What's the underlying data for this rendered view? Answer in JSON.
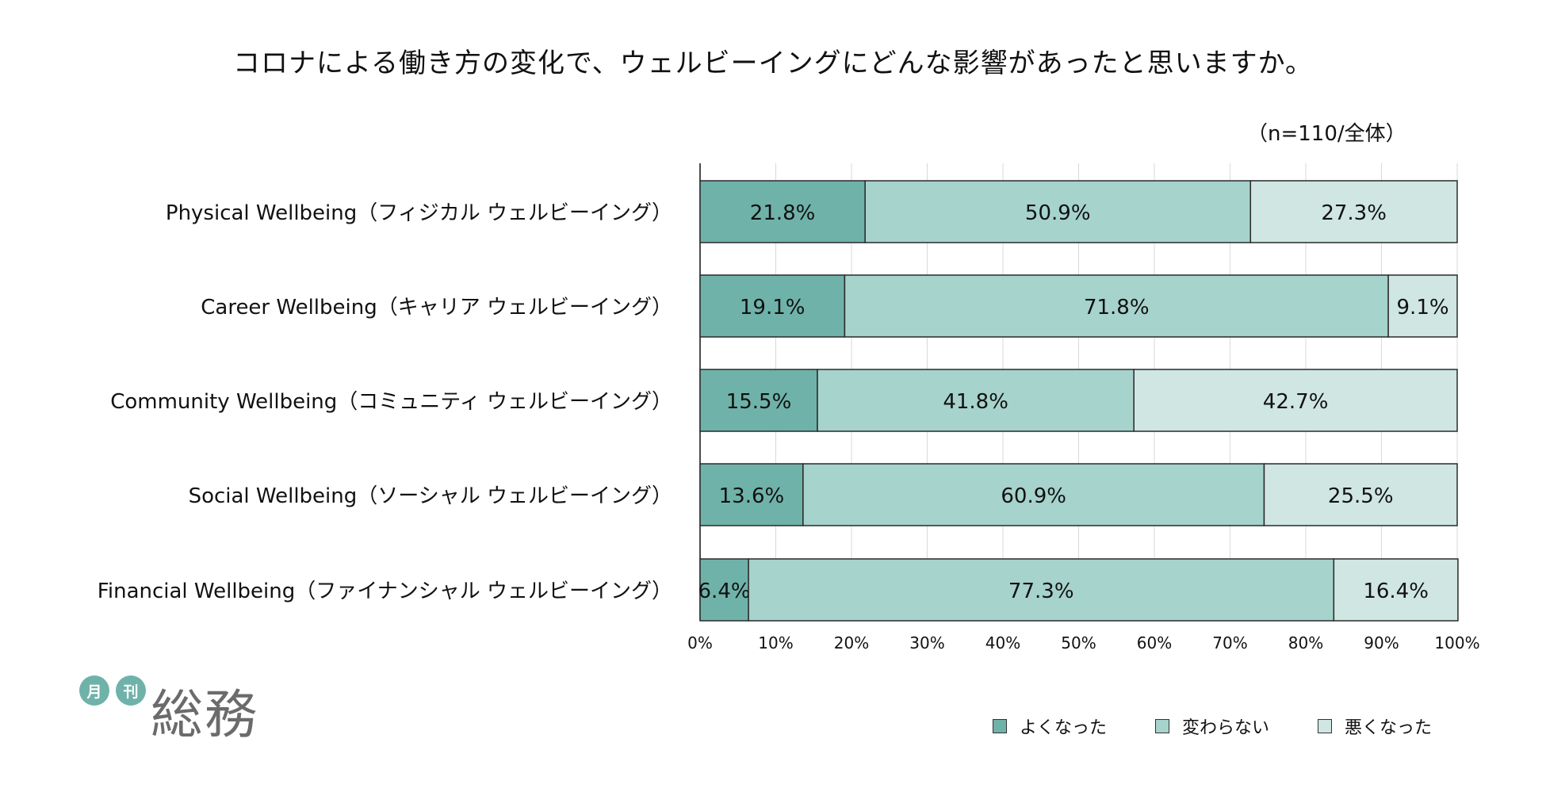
{
  "title": "コロナによる働き方の変化で、ウェルビーイングにどんな影響があったと思いますか。",
  "sample_note": "（n=110/全体）",
  "logo": {
    "badge1": "月",
    "badge2": "刊",
    "name": "総務"
  },
  "colors": {
    "better": "#6fb2a9",
    "same": "#a6d3cc",
    "worse": "#cfe6e2",
    "border": "#2a2a2a",
    "grid": "#d9d9d9"
  },
  "chart_data": {
    "type": "bar",
    "orientation": "horizontal",
    "stacked": "100%",
    "categories": [
      "Physical Wellbeing（フィジカル ウェルビーイング）",
      "Career Wellbeing（キャリア ウェルビーイング）",
      "Community Wellbeing（コミュニティ ウェルビーイング）",
      "Social Wellbeing（ソーシャル ウェルビーイング）",
      "Financial Wellbeing（ファイナンシャル ウェルビーイング）"
    ],
    "series": [
      {
        "name": "よくなった",
        "values": [
          21.8,
          19.1,
          15.5,
          13.6,
          6.4
        ]
      },
      {
        "name": "変わらない",
        "values": [
          50.9,
          71.8,
          41.8,
          60.9,
          77.3
        ]
      },
      {
        "name": "悪くなった",
        "values": [
          27.3,
          9.1,
          42.7,
          25.5,
          16.4
        ]
      }
    ],
    "xlim": [
      0,
      100
    ],
    "xticks": [
      "0%",
      "10%",
      "20%",
      "30%",
      "40%",
      "50%",
      "60%",
      "70%",
      "80%",
      "90%",
      "100%"
    ],
    "grid": true,
    "legend": "bottom-right"
  }
}
